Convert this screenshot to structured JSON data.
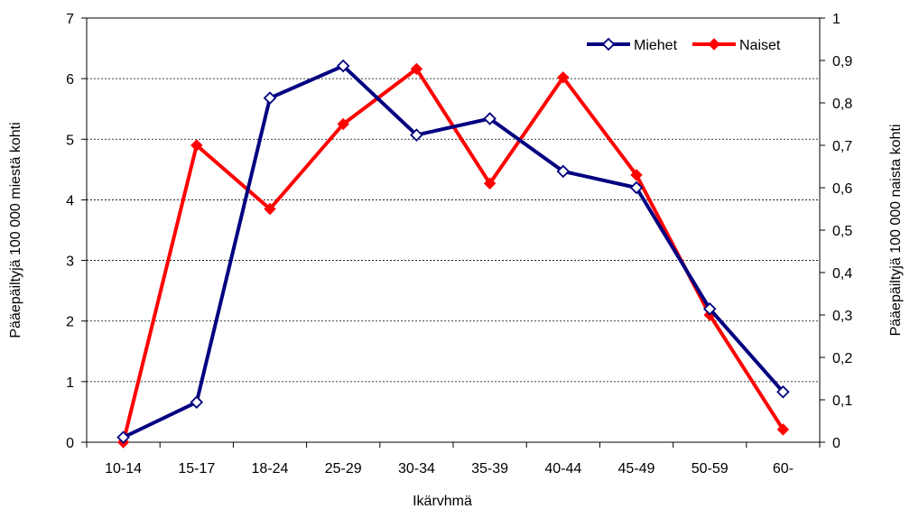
{
  "chart_data": {
    "type": "line",
    "categories": [
      "10-14",
      "15-17",
      "18-24",
      "25-29",
      "30-34",
      "35-39",
      "40-44",
      "45-49",
      "50-59",
      "60-"
    ],
    "xlabel": "Ikärvhmä",
    "ylabel_left": "Pääepäiltyjä 100 000 miestä kohti",
    "ylabel_right": "Pääepäiltyjä 100 000 naista kohti",
    "ylim_left": [
      0,
      7
    ],
    "ylim_right": [
      0,
      1
    ],
    "yticks_left": [
      "0",
      "1",
      "2",
      "3",
      "4",
      "5",
      "6",
      "7"
    ],
    "yticks_right": [
      "0",
      "0,1",
      "0,2",
      "0,3",
      "0,4",
      "0,5",
      "0,6",
      "0,7",
      "0,8",
      "0,9",
      "1"
    ],
    "grid": "horizontal dotted",
    "legend_position": "top-right",
    "series": [
      {
        "name": "Miehet",
        "axis": "left",
        "color": "#000080",
        "marker": "open-diamond",
        "values": [
          0.08,
          0.66,
          5.68,
          6.21,
          5.07,
          5.34,
          4.47,
          4.2,
          2.2,
          0.83
        ]
      },
      {
        "name": "Naiset",
        "axis": "right",
        "color": "#ff0000",
        "marker": "filled-diamond",
        "values": [
          0.0,
          0.7,
          0.55,
          0.75,
          0.88,
          0.61,
          0.86,
          0.63,
          0.3,
          0.03
        ]
      }
    ]
  }
}
